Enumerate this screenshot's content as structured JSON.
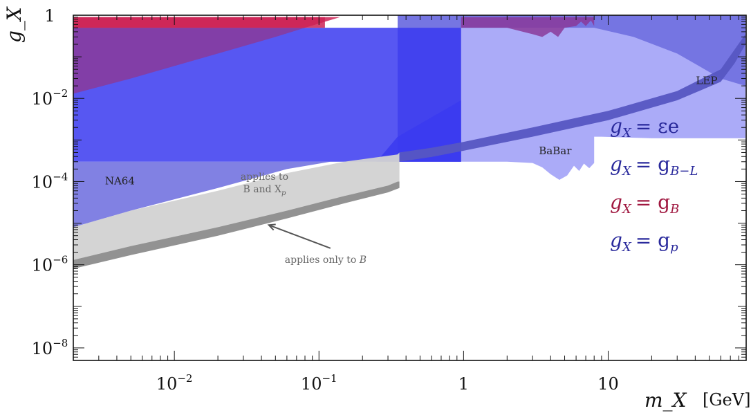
{
  "chart_data": {
    "type": "area",
    "xscale": "log",
    "yscale": "log",
    "xlim": [
      0.002,
      90
    ],
    "ylim": [
      5e-09,
      1
    ],
    "xlabel": "m_X",
    "xunit": "GeV",
    "ylabel": "g_X",
    "x_ticks": [
      {
        "value": 0.01,
        "base": "10",
        "exp": "−2"
      },
      {
        "value": 0.1,
        "base": "10",
        "exp": "−1"
      },
      {
        "value": 1,
        "base": "1",
        "exp": ""
      },
      {
        "value": 10,
        "base": "10",
        "exp": ""
      }
    ],
    "y_ticks": [
      {
        "value": 1,
        "base": "1",
        "exp": ""
      },
      {
        "value": 0.01,
        "base": "10",
        "exp": "−2"
      },
      {
        "value": 0.0001,
        "base": "10",
        "exp": "−4"
      },
      {
        "value": 1e-06,
        "base": "10",
        "exp": "−6"
      },
      {
        "value": 1e-08,
        "base": "10",
        "exp": "−8"
      }
    ],
    "colors": {
      "blue_dark": "#3a3af0",
      "blue_mid": "#6b6bde",
      "blue_light": "#9c9cf7",
      "blue_band": "#5656c2",
      "red": "#cc2255",
      "purple": "#8a3a9a",
      "gray_light": "#d2d2d2",
      "gray_dark": "#8c8c8c"
    },
    "regions": [
      {
        "label": "",
        "fill": "#9c9cf7",
        "points": [
          [
            0.35,
            0.0003
          ],
          [
            0.5,
            0.00031
          ],
          [
            1,
            0.0003
          ],
          [
            2,
            0.0003
          ],
          [
            3,
            0.00028
          ],
          [
            3.5,
            0.00022
          ],
          [
            4,
            0.00015
          ],
          [
            4.6,
            0.00011
          ],
          [
            5.2,
            0.00014
          ],
          [
            5.8,
            0.00024
          ],
          [
            6.3,
            0.00018
          ],
          [
            6.8,
            0.00027
          ],
          [
            7.4,
            0.00021
          ],
          [
            8,
            0.00028
          ],
          [
            8,
            0.0012
          ],
          [
            9,
            0.0012
          ],
          [
            20,
            0.0011
          ],
          [
            60,
            0.0011
          ],
          [
            89,
            0.0011
          ],
          [
            89,
            1
          ],
          [
            0.35,
            1
          ]
        ]
      },
      {
        "label": "",
        "fill": "#6b6bde",
        "points": [
          [
            0.35,
            0.0003
          ],
          [
            0.96,
            0.0003
          ],
          [
            0.96,
            0.5
          ],
          [
            8,
            0.5
          ],
          [
            15,
            0.3
          ],
          [
            30,
            0.12
          ],
          [
            60,
            0.03
          ],
          [
            89,
            0.02
          ],
          [
            89,
            1
          ],
          [
            0.35,
            1
          ]
        ]
      },
      {
        "label": "",
        "fill": "#3a3af0",
        "points": [
          [
            0.002,
            0.0003
          ],
          [
            0.96,
            0.0003
          ],
          [
            0.96,
            0.009
          ],
          [
            0.35,
            0.0012
          ],
          [
            0.25,
            0.0003
          ],
          [
            0.002,
            0.0003
          ]
        ]
      },
      {
        "label": "",
        "fill": "#3a3af0",
        "points": [
          [
            0.002,
            0.0003
          ],
          [
            0.96,
            0.0003
          ],
          [
            0.96,
            0.5
          ],
          [
            0.002,
            0.5
          ]
        ]
      },
      {
        "label": "",
        "fill": "#6b6bde",
        "points": [
          [
            0.002,
            8e-06
          ],
          [
            0.005,
            2e-05
          ],
          [
            0.02,
            7e-05
          ],
          [
            0.06,
            0.0002
          ],
          [
            0.12,
            0.0003
          ],
          [
            0.002,
            0.0003
          ]
        ]
      },
      {
        "label": "",
        "fill": "#8a3a9a",
        "points": [
          [
            0.002,
            0.013
          ],
          [
            0.005,
            0.03
          ],
          [
            0.01,
            0.06
          ],
          [
            0.02,
            0.12
          ],
          [
            0.05,
            0.3
          ],
          [
            0.08,
            0.5
          ],
          [
            0.002,
            0.5
          ]
        ]
      },
      {
        "label": "",
        "fill": "#8a3a9a",
        "points": [
          [
            0.96,
            0.5
          ],
          [
            2,
            0.5
          ],
          [
            3,
            0.35
          ],
          [
            3.5,
            0.3
          ],
          [
            4,
            0.4
          ],
          [
            4.5,
            0.3
          ],
          [
            5,
            0.5
          ],
          [
            6,
            0.55
          ],
          [
            6.5,
            0.7
          ],
          [
            7,
            0.55
          ],
          [
            7.6,
            0.75
          ],
          [
            8,
            0.55
          ],
          [
            8,
            0.9
          ],
          [
            0.96,
            0.9
          ]
        ]
      },
      {
        "label": "",
        "fill": "#cc2255",
        "points": [
          [
            0.002,
            0.5
          ],
          [
            0.08,
            0.5
          ],
          [
            0.14,
            0.9
          ],
          [
            0.002,
            0.9
          ]
        ]
      },
      {
        "label": "",
        "fill": "#cc2255",
        "points": [
          [
            0.002,
            0.5
          ],
          [
            0.002,
            0.9
          ],
          [
            0.11,
            0.9
          ],
          [
            0.11,
            0.5
          ]
        ]
      }
    ],
    "bands": [
      {
        "name": "applies to B and X_p",
        "fill": "#d2d2d2",
        "upper": [
          [
            0.002,
            8e-06
          ],
          [
            0.005,
            2e-05
          ],
          [
            0.02,
            6e-05
          ],
          [
            0.06,
            0.00016
          ],
          [
            0.15,
            0.0003
          ],
          [
            0.35,
            0.00045
          ],
          [
            0.36,
            0.0005
          ]
        ],
        "lower": [
          [
            0.002,
            1.3e-06
          ],
          [
            0.005,
            2.8e-06
          ],
          [
            0.02,
            8e-06
          ],
          [
            0.06,
            2e-05
          ],
          [
            0.15,
            4.5e-05
          ],
          [
            0.3,
            8e-05
          ],
          [
            0.35,
            0.0001
          ],
          [
            0.36,
            0.0001
          ]
        ]
      },
      {
        "name": "applies only to B",
        "fill": "#8c8c8c",
        "upper": [
          [
            0.002,
            1.3e-06
          ],
          [
            0.005,
            2.8e-06
          ],
          [
            0.02,
            8e-06
          ],
          [
            0.06,
            2e-05
          ],
          [
            0.15,
            4.5e-05
          ],
          [
            0.3,
            8e-05
          ],
          [
            0.35,
            0.0001
          ],
          [
            0.36,
            0.0001
          ]
        ],
        "lower": [
          [
            0.002,
            8e-07
          ],
          [
            0.005,
            1.7e-06
          ],
          [
            0.02,
            5e-06
          ],
          [
            0.06,
            1.3e-05
          ],
          [
            0.15,
            3e-05
          ],
          [
            0.3,
            5.5e-05
          ],
          [
            0.36,
            7e-05
          ]
        ]
      },
      {
        "name": "",
        "fill": "#5656c2",
        "upper": [
          [
            0.36,
            0.0005
          ],
          [
            0.6,
            0.00065
          ],
          [
            1,
            0.0009
          ],
          [
            3,
            0.002
          ],
          [
            10,
            0.005
          ],
          [
            30,
            0.015
          ],
          [
            60,
            0.05
          ],
          [
            75,
            0.15
          ],
          [
            89,
            0.35
          ]
        ],
        "lower": [
          [
            0.36,
            0.0003
          ],
          [
            0.6,
            0.00039
          ],
          [
            1,
            0.00055
          ],
          [
            3,
            0.0012
          ],
          [
            10,
            0.003
          ],
          [
            30,
            0.009
          ],
          [
            60,
            0.025
          ],
          [
            75,
            0.07
          ],
          [
            89,
            0.2
          ]
        ]
      }
    ],
    "annotations": {
      "na64": {
        "text": "NA64",
        "x": 0.0042,
        "y": 8.5e-05
      },
      "babar": {
        "text": "BaBar",
        "x": 4.3,
        "y": 0.00045
      },
      "lep": {
        "text": "LEP",
        "x": 48,
        "y": 0.022
      },
      "applies_to_line1": {
        "text": "applies to",
        "x": 0.042,
        "y": 0.00011
      },
      "applies_to_line2": {
        "text": "B and X",
        "sub": "p",
        "x": 0.042,
        "y": 5.5e-05
      },
      "applies_only": {
        "text": "applies only to",
        "italic": "B",
        "x": 0.058,
        "y": 1.1e-06
      },
      "arrow": {
        "from": [
          0.12,
          2.5e-06
        ],
        "to": [
          0.045,
          9e-06
        ]
      }
    },
    "legend": {
      "placement": "right",
      "entries": [
        {
          "lhs": "g",
          "sub": "X",
          "rhs": "= εe",
          "color": "#2a2a9c"
        },
        {
          "lhs": "g",
          "sub": "X",
          "rhs": "= g",
          "rsub": "B−L",
          "color": "#2a2a9c"
        },
        {
          "lhs": "g",
          "sub": "X",
          "rhs": "= g",
          "rsub": "B",
          "color": "#a01840"
        },
        {
          "lhs": "g",
          "sub": "X",
          "rhs": "= g",
          "rsub": "p",
          "color": "#2a2a9c"
        }
      ]
    }
  }
}
